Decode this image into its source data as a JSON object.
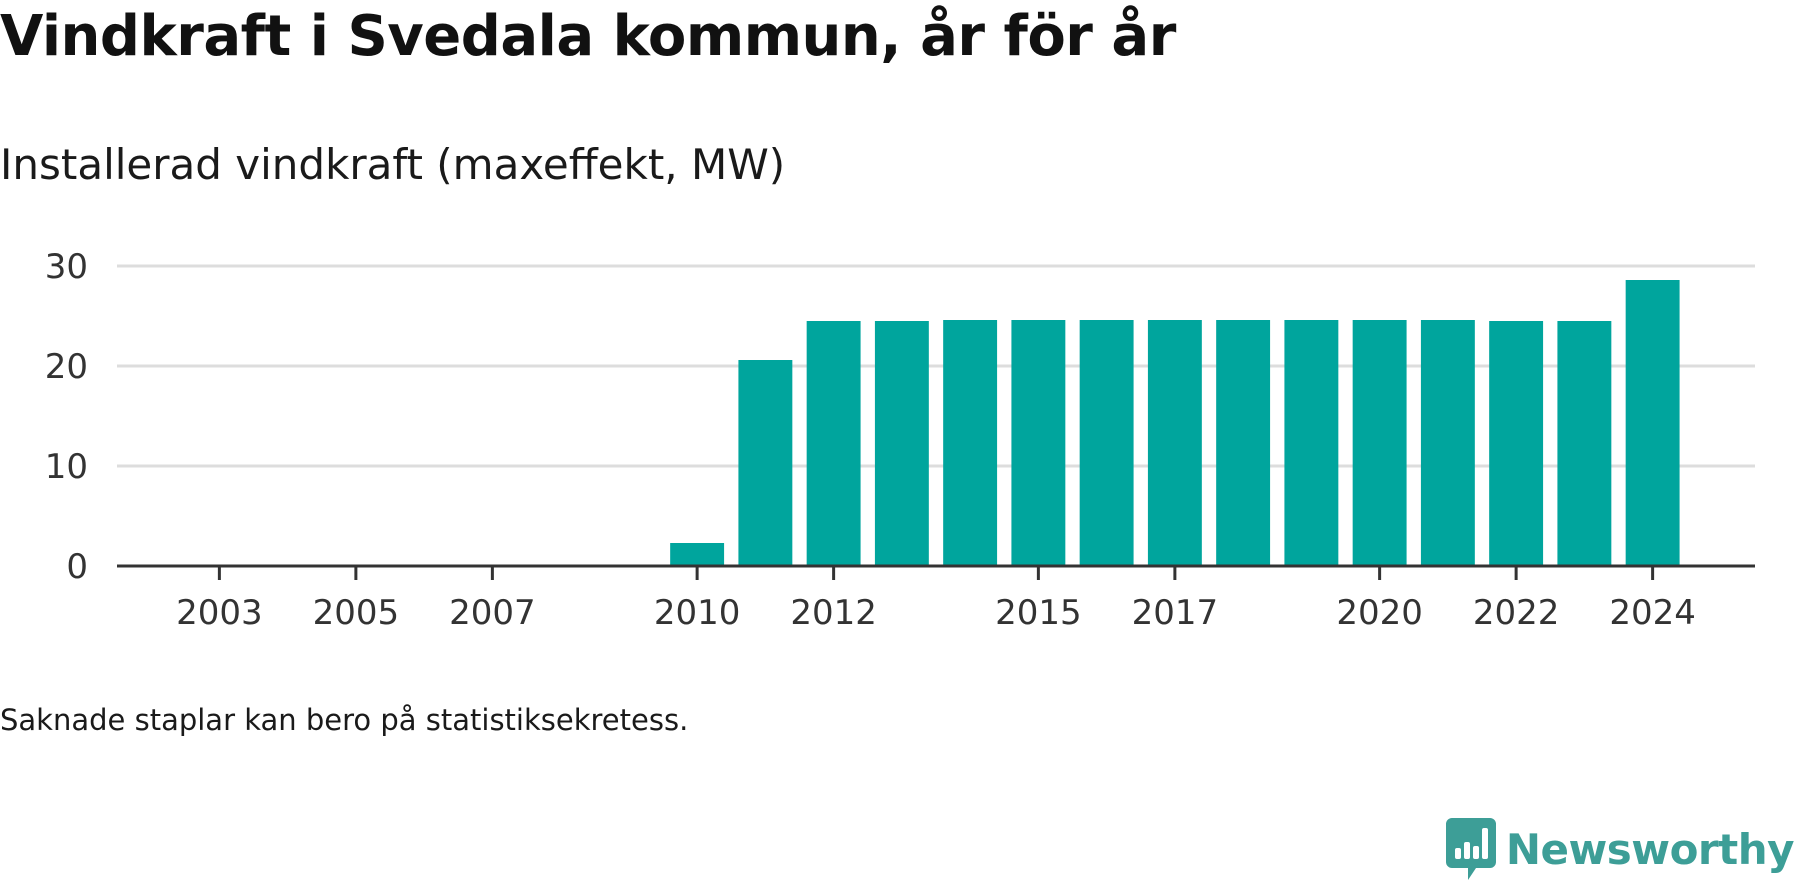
{
  "title": "Vindkraft i Svedala kommun, år för år",
  "subtitle": "Installerad vindkraft (maxeffekt, MW)",
  "note": "Saknade staplar kan bero på statistiksekretess.",
  "brand": {
    "name": "Newsworthy",
    "icon": "newsworthy-logo-icon",
    "color": "#3d9e97"
  },
  "chart_data": {
    "type": "bar",
    "title": "Vindkraft i Svedala kommun, år för år",
    "subtitle": "Installerad vindkraft (maxeffekt, MW)",
    "xlabel": "",
    "ylabel": "",
    "ylim": [
      0,
      30
    ],
    "yticks": [
      0,
      10,
      20,
      30
    ],
    "xlim": [
      2001.5,
      2025.5
    ],
    "xticks": [
      2003,
      2005,
      2007,
      2010,
      2012,
      2015,
      2017,
      2020,
      2022,
      2024
    ],
    "grid": true,
    "legend": "none",
    "bar_color": "#00a59d",
    "categories": [
      2010,
      2011,
      2012,
      2013,
      2014,
      2015,
      2016,
      2017,
      2018,
      2019,
      2020,
      2021,
      2022,
      2023,
      2024
    ],
    "values": [
      2.3,
      20.6,
      24.5,
      24.5,
      24.6,
      24.6,
      24.6,
      24.6,
      24.6,
      24.6,
      24.6,
      24.6,
      24.5,
      24.5,
      28.6
    ]
  }
}
